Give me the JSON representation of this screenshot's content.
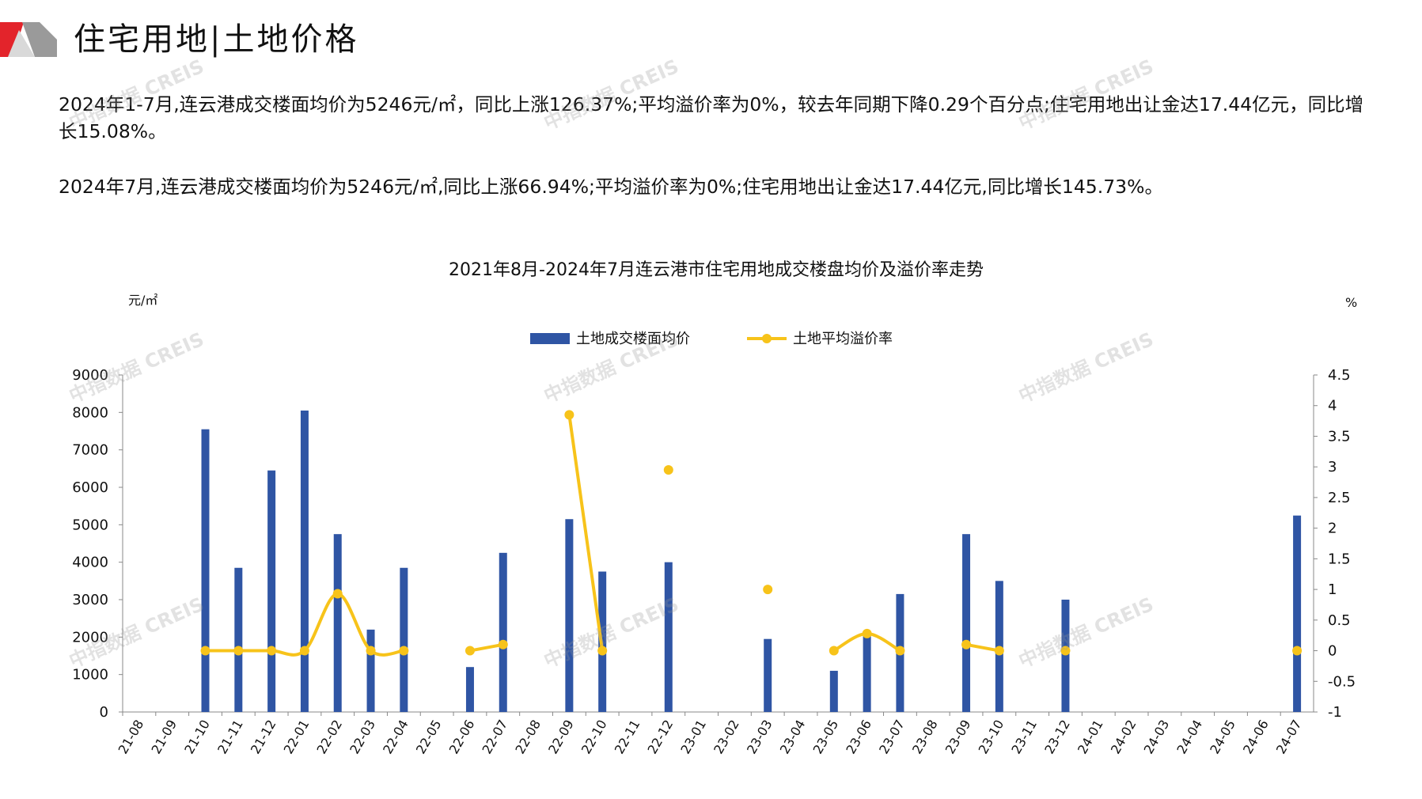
{
  "header": {
    "title": "住宅用地|土地价格"
  },
  "paragraphs": [
    "2024年1-7月,连云港成交楼面均价为5246元/㎡，同比上涨126.37%;平均溢价率为0%，较去年同期下降0.29个百分点;住宅用地出让金达17.44亿元，同比增长15.08%。",
    "2024年7月,连云港成交楼面均价为5246元/㎡,同比上涨66.94%;平均溢价率为0%;住宅用地出让金达17.44亿元,同比增长145.73%。"
  ],
  "watermark_text": "中指数据 CREIS",
  "colors": {
    "bar": "#2f55a4",
    "line": "#f7c31a",
    "axis": "#888888",
    "logo_red": "#e3242b",
    "logo_gray": "#9a9a9a"
  },
  "chart_data": {
    "type": "bar",
    "title": "2021年8月-2024年7月连云港市住宅用地成交楼盘均价及溢价率走势",
    "y_left_unit": "元/㎡",
    "y_right_unit": "%",
    "y_left_lim": [
      0,
      9000
    ],
    "y_left_ticks": [
      "0",
      "1000",
      "2000",
      "3000",
      "4000",
      "5000",
      "6000",
      "7000",
      "8000",
      "9000"
    ],
    "y_right_lim": [
      -1,
      4.5
    ],
    "y_right_ticks": [
      "-1",
      "-0.5",
      "0",
      "0.5",
      "1",
      "1.5",
      "2",
      "2.5",
      "3",
      "3.5",
      "4",
      "4.5"
    ],
    "legend_position": "top-center",
    "categories": [
      "21-08",
      "21-09",
      "21-10",
      "21-11",
      "21-12",
      "22-01",
      "22-02",
      "22-03",
      "22-04",
      "22-05",
      "22-06",
      "22-07",
      "22-08",
      "22-09",
      "22-10",
      "22-11",
      "22-12",
      "23-01",
      "23-02",
      "23-03",
      "23-04",
      "23-05",
      "23-06",
      "23-07",
      "23-08",
      "23-09",
      "23-10",
      "23-11",
      "23-12",
      "24-01",
      "24-02",
      "24-03",
      "24-04",
      "24-05",
      "24-06",
      "24-07"
    ],
    "series": [
      {
        "name": "土地成交楼面均价",
        "type": "bar",
        "axis": "left",
        "values": [
          null,
          null,
          7550,
          3850,
          6450,
          8050,
          4750,
          2200,
          3850,
          null,
          1200,
          4250,
          null,
          5150,
          3750,
          null,
          4000,
          null,
          null,
          1950,
          null,
          1100,
          2150,
          3150,
          null,
          4750,
          3500,
          null,
          3000,
          null,
          null,
          null,
          null,
          null,
          null,
          5246
        ]
      },
      {
        "name": "土地平均溢价率",
        "type": "line",
        "axis": "right",
        "values": [
          null,
          null,
          0,
          0,
          0,
          0,
          0.93,
          0,
          0,
          null,
          0,
          0.1,
          null,
          3.85,
          0,
          null,
          2.95,
          null,
          null,
          1,
          null,
          0,
          0.28,
          0,
          null,
          0.1,
          0,
          null,
          0,
          null,
          null,
          null,
          null,
          null,
          null,
          0
        ]
      }
    ]
  }
}
